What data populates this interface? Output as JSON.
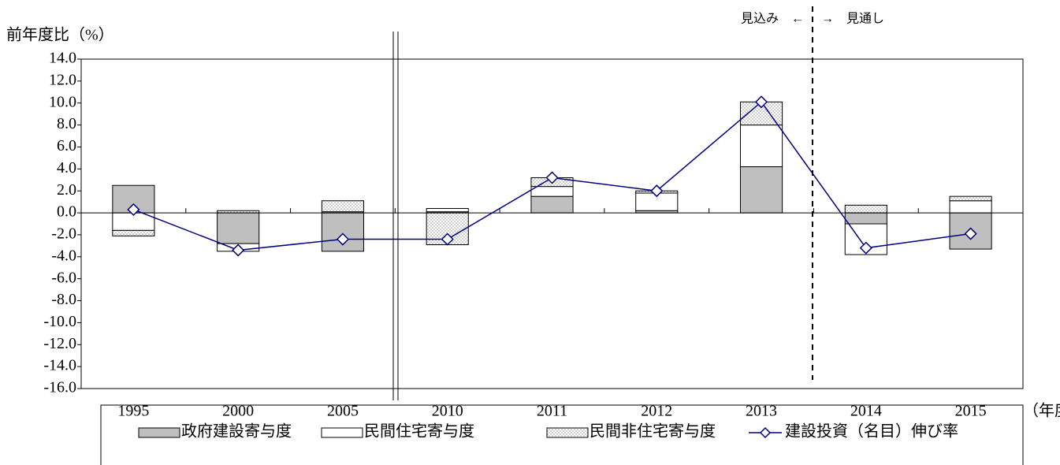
{
  "chart_data": {
    "type": "bar",
    "stacked": true,
    "y_label": "前年度比（%）",
    "x_unit": "（年度）",
    "annotations": [
      "見込み　←",
      "→　見通し"
    ],
    "categories": [
      "1995",
      "2000",
      "2005",
      "2010",
      "2011",
      "2012",
      "2013",
      "2014",
      "2015"
    ],
    "series": [
      {
        "name": "政府建設寄与度",
        "type": "bar",
        "color": "#bfbfbf",
        "values": [
          2.5,
          -2.8,
          -3.5,
          0.1,
          1.5,
          0.2,
          4.2,
          -1.0,
          -3.3
        ]
      },
      {
        "name": "民間住宅寄与度",
        "type": "bar",
        "color": "#ffffff",
        "values": [
          -1.6,
          -0.7,
          0.1,
          0.3,
          0.9,
          1.6,
          3.8,
          -2.8,
          1.1
        ]
      },
      {
        "name": "民間非住宅寄与度",
        "type": "bar",
        "color": "#e6e6e6",
        "values": [
          -0.5,
          0.2,
          1.0,
          -2.9,
          0.8,
          0.2,
          2.1,
          0.7,
          0.4
        ]
      },
      {
        "name": "建設投資（名目）伸び率",
        "type": "line",
        "color": "#000080",
        "values": [
          0.3,
          -3.4,
          -2.4,
          -2.4,
          3.2,
          2.0,
          10.1,
          -3.2,
          -1.9
        ]
      }
    ],
    "ylim": [
      -16,
      14
    ],
    "yticks": [
      {
        "value": 14,
        "label": "14.0"
      },
      {
        "value": 12,
        "label": "12.0"
      },
      {
        "value": 10,
        "label": "10.0"
      },
      {
        "value": 8,
        "label": "8.0"
      },
      {
        "value": 6,
        "label": "6.0"
      },
      {
        "value": 4,
        "label": "4.0"
      },
      {
        "value": 2,
        "label": "2.0"
      },
      {
        "value": 0,
        "label": "0.0"
      },
      {
        "value": -2,
        "label": "-2.0"
      },
      {
        "value": -4,
        "label": "-4.0"
      },
      {
        "value": -6,
        "label": "-6.0"
      },
      {
        "value": -8,
        "label": "-8.0"
      },
      {
        "value": -10,
        "label": "-10.0"
      },
      {
        "value": -12,
        "label": "-12.0"
      },
      {
        "value": -14,
        "label": "-14.0"
      },
      {
        "value": -16,
        "label": "-16.0"
      }
    ]
  }
}
